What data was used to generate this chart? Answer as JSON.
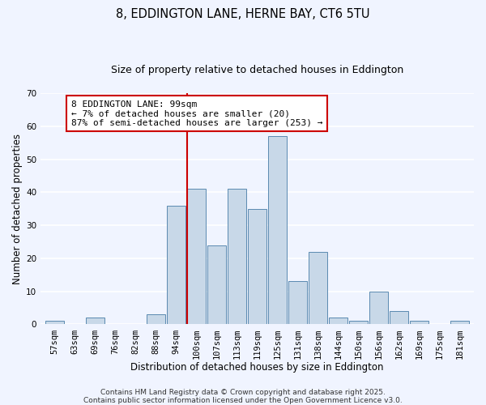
{
  "title": "8, EDDINGTON LANE, HERNE BAY, CT6 5TU",
  "subtitle": "Size of property relative to detached houses in Eddington",
  "xlabel": "Distribution of detached houses by size in Eddington",
  "ylabel": "Number of detached properties",
  "categories": [
    "57sqm",
    "63sqm",
    "69sqm",
    "76sqm",
    "82sqm",
    "88sqm",
    "94sqm",
    "100sqm",
    "107sqm",
    "113sqm",
    "119sqm",
    "125sqm",
    "131sqm",
    "138sqm",
    "144sqm",
    "150sqm",
    "156sqm",
    "162sqm",
    "169sqm",
    "175sqm",
    "181sqm"
  ],
  "values": [
    1,
    0,
    2,
    0,
    0,
    3,
    36,
    41,
    24,
    41,
    35,
    57,
    13,
    22,
    2,
    1,
    10,
    4,
    1,
    0,
    1
  ],
  "bar_color": "#c8d8e8",
  "bar_edge_color": "#5a8ab0",
  "vline_index": 7,
  "ylim": [
    0,
    70
  ],
  "yticks": [
    0,
    10,
    20,
    30,
    40,
    50,
    60,
    70
  ],
  "annotation_title": "8 EDDINGTON LANE: 99sqm",
  "annotation_line1": "← 7% of detached houses are smaller (20)",
  "annotation_line2": "87% of semi-detached houses are larger (253) →",
  "annotation_box_color": "#ffffff",
  "annotation_box_edge": "#cc0000",
  "vline_color": "#cc0000",
  "footnote1": "Contains HM Land Registry data © Crown copyright and database right 2025.",
  "footnote2": "Contains public sector information licensed under the Open Government Licence v3.0.",
  "background_color": "#f0f4ff",
  "grid_color": "#ffffff",
  "title_fontsize": 10.5,
  "subtitle_fontsize": 9,
  "axis_label_fontsize": 8.5,
  "tick_fontsize": 7.5,
  "annotation_fontsize": 8,
  "footnote_fontsize": 6.5
}
